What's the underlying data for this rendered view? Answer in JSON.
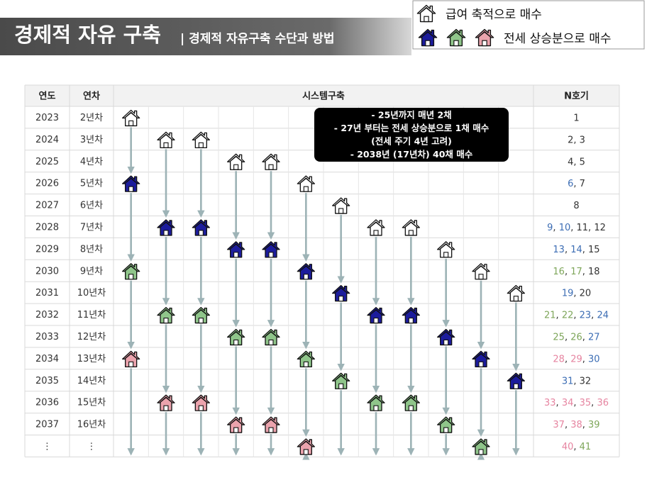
{
  "header": {
    "title": "경제적 자유 구축",
    "subtitle": "| 경제적 자유구축 수단과 방법"
  },
  "legend": [
    {
      "fills": [
        "#ffffff"
      ],
      "label": "급여 축적으로 매수"
    },
    {
      "fills": [
        "#1c1c9c",
        "#8fc58a",
        "#eba3ad"
      ],
      "label": "전세 상승분으로 매수"
    }
  ],
  "note": [
    "- 25년까지 매년 2채",
    "-   27년 부터는 전세 상승분으로 1채 매수",
    "(전세 주기 4년 고려)",
    "- 2038년 (17년차)  40채 매수"
  ],
  "table": {
    "columns": [
      "연도",
      "연차",
      "시스템구축",
      "N호기"
    ],
    "separator": ", ",
    "rows": [
      {
        "year": "2023",
        "term": "2년차",
        "houses": [
          {
            "col": 0,
            "fill": "#ffffff"
          }
        ],
        "n": [
          {
            "value": 1
          }
        ]
      },
      {
        "year": "2024",
        "term": "3년차",
        "houses": [
          {
            "col": 1,
            "fill": "#ffffff"
          },
          {
            "col": 2,
            "fill": "#ffffff"
          }
        ],
        "n": [
          {
            "value": 2
          },
          {
            "value": 3
          }
        ]
      },
      {
        "year": "2025",
        "term": "4년차",
        "houses": [
          {
            "col": 3,
            "fill": "#ffffff"
          },
          {
            "col": 4,
            "fill": "#ffffff"
          }
        ],
        "n": [
          {
            "value": 4
          },
          {
            "value": 5
          }
        ]
      },
      {
        "year": "2026",
        "term": "5년차",
        "houses": [
          {
            "col": 0,
            "fill": "#1c1c9c"
          },
          {
            "col": 5,
            "fill": "#ffffff"
          }
        ],
        "n": [
          {
            "value": 6,
            "color": "#3c6db4"
          },
          {
            "value": 7
          }
        ]
      },
      {
        "year": "2027",
        "term": "6년차",
        "houses": [
          {
            "col": 6,
            "fill": "#ffffff"
          }
        ],
        "n": [
          {
            "value": 8
          }
        ]
      },
      {
        "year": "2028",
        "term": "7년차",
        "houses": [
          {
            "col": 1,
            "fill": "#1c1c9c"
          },
          {
            "col": 2,
            "fill": "#1c1c9c"
          },
          {
            "col": 7,
            "fill": "#ffffff"
          },
          {
            "col": 8,
            "fill": "#ffffff"
          }
        ],
        "n": [
          {
            "value": 9,
            "color": "#3c6db4"
          },
          {
            "value": 10,
            "color": "#3c6db4"
          },
          {
            "value": 11
          },
          {
            "value": 12
          }
        ]
      },
      {
        "year": "2029",
        "term": "8년차",
        "houses": [
          {
            "col": 3,
            "fill": "#1c1c9c"
          },
          {
            "col": 4,
            "fill": "#1c1c9c"
          },
          {
            "col": 9,
            "fill": "#ffffff"
          }
        ],
        "n": [
          {
            "value": 13,
            "color": "#3c6db4"
          },
          {
            "value": 14,
            "color": "#3c6db4"
          },
          {
            "value": 15
          }
        ]
      },
      {
        "year": "2030",
        "term": "9년차",
        "houses": [
          {
            "col": 0,
            "fill": "#8fc58a"
          },
          {
            "col": 5,
            "fill": "#1c1c9c"
          },
          {
            "col": 10,
            "fill": "#ffffff"
          }
        ],
        "n": [
          {
            "value": 16,
            "color": "#7ea65a"
          },
          {
            "value": 17,
            "color": "#7ea65a"
          },
          {
            "value": 18
          }
        ]
      },
      {
        "year": "2031",
        "term": "10년차",
        "houses": [
          {
            "col": 6,
            "fill": "#1c1c9c"
          },
          {
            "col": 11,
            "fill": "#ffffff"
          }
        ],
        "n": [
          {
            "value": 19,
            "color": "#3c6db4"
          },
          {
            "value": 20
          }
        ]
      },
      {
        "year": "2032",
        "term": "11년차",
        "houses": [
          {
            "col": 1,
            "fill": "#8fc58a"
          },
          {
            "col": 2,
            "fill": "#8fc58a"
          },
          {
            "col": 7,
            "fill": "#1c1c9c"
          },
          {
            "col": 8,
            "fill": "#1c1c9c"
          }
        ],
        "n": [
          {
            "value": 21,
            "color": "#7ea65a"
          },
          {
            "value": 22,
            "color": "#7ea65a"
          },
          {
            "value": 23,
            "color": "#3c6db4"
          },
          {
            "value": 24,
            "color": "#3c6db4"
          }
        ]
      },
      {
        "year": "2033",
        "term": "12년차",
        "houses": [
          {
            "col": 3,
            "fill": "#8fc58a"
          },
          {
            "col": 4,
            "fill": "#8fc58a"
          },
          {
            "col": 9,
            "fill": "#1c1c9c"
          }
        ],
        "n": [
          {
            "value": 25,
            "color": "#7ea65a"
          },
          {
            "value": 26,
            "color": "#7ea65a"
          },
          {
            "value": 27,
            "color": "#3c6db4"
          }
        ]
      },
      {
        "year": "2034",
        "term": "13년차",
        "houses": [
          {
            "col": 0,
            "fill": "#eba3ad"
          },
          {
            "col": 5,
            "fill": "#8fc58a"
          },
          {
            "col": 10,
            "fill": "#1c1c9c"
          }
        ],
        "n": [
          {
            "value": 28,
            "color": "#e684a0"
          },
          {
            "value": 29,
            "color": "#e684a0"
          },
          {
            "value": 30,
            "color": "#3c6db4"
          }
        ]
      },
      {
        "year": "2035",
        "term": "14년차",
        "houses": [
          {
            "col": 6,
            "fill": "#8fc58a"
          },
          {
            "col": 11,
            "fill": "#1c1c9c"
          }
        ],
        "n": [
          {
            "value": 31,
            "color": "#3c6db4"
          },
          {
            "value": 32
          }
        ]
      },
      {
        "year": "2036",
        "term": "15년차",
        "houses": [
          {
            "col": 1,
            "fill": "#eba3ad"
          },
          {
            "col": 2,
            "fill": "#eba3ad"
          },
          {
            "col": 7,
            "fill": "#8fc58a"
          },
          {
            "col": 8,
            "fill": "#8fc58a"
          }
        ],
        "n": [
          {
            "value": 33,
            "color": "#e684a0"
          },
          {
            "value": 34,
            "color": "#e684a0"
          },
          {
            "value": 35,
            "color": "#e684a0"
          },
          {
            "value": 36,
            "color": "#e684a0"
          }
        ]
      },
      {
        "year": "2037",
        "term": "16년차",
        "houses": [
          {
            "col": 3,
            "fill": "#eba3ad"
          },
          {
            "col": 4,
            "fill": "#eba3ad"
          },
          {
            "col": 9,
            "fill": "#8fc58a"
          }
        ],
        "n": [
          {
            "value": 37,
            "color": "#e684a0"
          },
          {
            "value": 38,
            "color": "#e684a0"
          },
          {
            "value": 39,
            "color": "#7ea65a"
          }
        ]
      },
      {
        "year": "⋮",
        "term": "⋮",
        "houses": [
          {
            "col": 5,
            "fill": "#eba3ad"
          },
          {
            "col": 10,
            "fill": "#8fc58a"
          }
        ],
        "n": [
          {
            "value": 40,
            "color": "#e684a0"
          },
          {
            "value": 41,
            "color": "#7ea65a"
          }
        ]
      }
    ]
  }
}
